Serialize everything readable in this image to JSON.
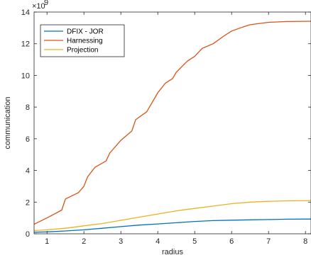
{
  "chart_data": {
    "type": "line",
    "xlabel": "radius",
    "ylabel": "communication",
    "y_exponent_base": "×10",
    "y_exponent_power": "9",
    "xlim": [
      0.65,
      8.15
    ],
    "ylim": [
      0,
      14
    ],
    "x_ticks": [
      "1",
      "2",
      "3",
      "4",
      "5",
      "6",
      "7",
      "8"
    ],
    "y_ticks": [
      "0",
      "2",
      "4",
      "6",
      "8",
      "10",
      "12",
      "14"
    ],
    "grid": false,
    "legend_position": "top-left",
    "series": [
      {
        "name": "DFIX - JOR",
        "color": "#0072BD",
        "x": [
          0.65,
          1.0,
          1.5,
          2.0,
          2.5,
          3.0,
          3.5,
          4.0,
          4.5,
          5.0,
          5.5,
          6.0,
          6.5,
          7.0,
          7.5,
          8.15
        ],
        "y": [
          0.1,
          0.12,
          0.18,
          0.25,
          0.35,
          0.45,
          0.55,
          0.62,
          0.7,
          0.78,
          0.83,
          0.86,
          0.88,
          0.9,
          0.92,
          0.93
        ]
      },
      {
        "name": "Harnessing",
        "color": "#D95319",
        "x": [
          0.65,
          1.0,
          1.4,
          1.5,
          1.85,
          2.0,
          2.1,
          2.3,
          2.6,
          2.7,
          3.0,
          3.3,
          3.4,
          3.7,
          3.9,
          4.0,
          4.2,
          4.4,
          4.5,
          4.8,
          5.0,
          5.2,
          5.5,
          5.8,
          6.0,
          6.3,
          6.5,
          7.0,
          7.5,
          8.15
        ],
        "y": [
          0.6,
          1.0,
          1.5,
          2.2,
          2.6,
          3.0,
          3.6,
          4.2,
          4.6,
          5.1,
          5.9,
          6.5,
          7.2,
          7.7,
          8.5,
          8.9,
          9.5,
          9.8,
          10.2,
          10.9,
          11.2,
          11.7,
          12.0,
          12.5,
          12.8,
          13.05,
          13.2,
          13.35,
          13.4,
          13.42
        ]
      },
      {
        "name": "Projection",
        "color": "#EDB120",
        "x": [
          0.65,
          1.0,
          1.5,
          2.0,
          2.5,
          3.0,
          3.5,
          4.0,
          4.5,
          5.0,
          5.5,
          6.0,
          6.5,
          7.0,
          7.5,
          8.15
        ],
        "y": [
          0.2,
          0.25,
          0.35,
          0.5,
          0.65,
          0.85,
          1.05,
          1.25,
          1.45,
          1.6,
          1.75,
          1.9,
          2.0,
          2.05,
          2.08,
          2.1
        ]
      }
    ]
  }
}
